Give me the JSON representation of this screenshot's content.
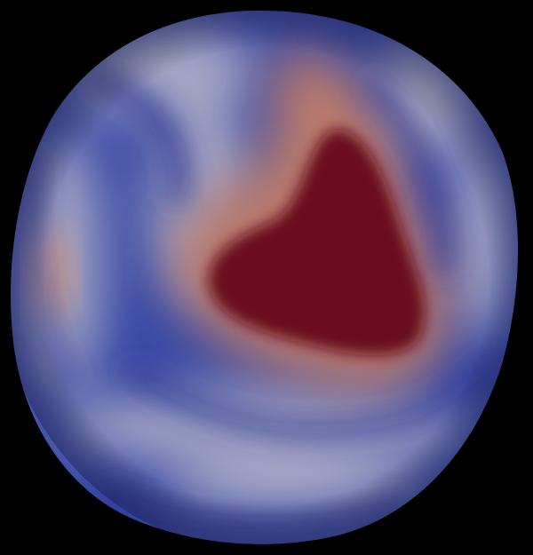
{
  "view": {
    "background_color": "#000000"
  },
  "field_plot": {
    "colormap": {
      "name": "cool-to-warm",
      "low_color": "#3a4aa6",
      "mid_color": "#c8c6cf",
      "high_color": "#6b0c1b"
    },
    "regions": [
      {
        "name": "hotspot-core",
        "level": "high"
      },
      {
        "name": "warm-patch-left",
        "level": "mid"
      },
      {
        "name": "cold-band",
        "level": "low"
      }
    ]
  }
}
